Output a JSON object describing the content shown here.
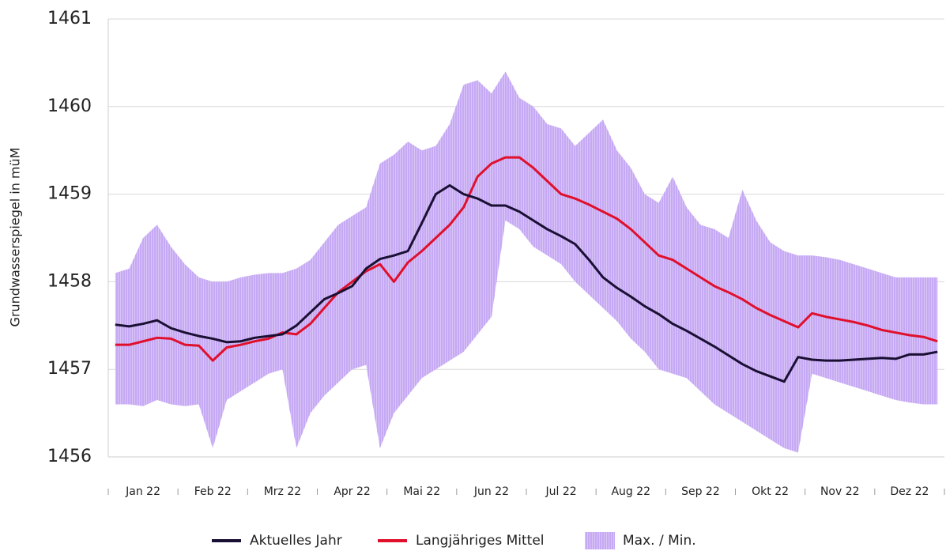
{
  "chart_data": {
    "type": "line",
    "y_label": "Grundwasserspiegel in müM",
    "categories": [
      null,
      null,
      "Jan 22",
      null,
      null,
      null,
      null,
      "Feb 22",
      null,
      null,
      null,
      null,
      "Mrz 22",
      null,
      null,
      null,
      null,
      "Apr 22",
      null,
      null,
      null,
      null,
      "Mai 22",
      null,
      null,
      null,
      null,
      "Jun 22",
      null,
      null,
      null,
      null,
      "Jul 22",
      null,
      null,
      null,
      null,
      "Aug 22",
      null,
      null,
      null,
      null,
      "Sep 22",
      null,
      null,
      null,
      null,
      "Okt 22",
      null,
      null,
      null,
      null,
      "Nov 22",
      null,
      null,
      null,
      null,
      "Dez 22",
      null,
      null
    ],
    "series": [
      {
        "name": "Aktuelles Jahr",
        "color": "#1a1033",
        "values": [
          1457.51,
          1457.49,
          1457.52,
          1457.56,
          1457.47,
          1457.42,
          1457.38,
          1457.35,
          1457.31,
          1457.32,
          1457.36,
          1457.38,
          1457.4,
          1457.5,
          1457.65,
          1457.8,
          1457.87,
          1457.95,
          1458.15,
          1458.26,
          1458.3,
          1458.35,
          1458.67,
          1459.0,
          1459.1,
          1459.0,
          1458.95,
          1458.87,
          1458.87,
          1458.8,
          1458.7,
          1458.6,
          1458.52,
          1458.43,
          1458.25,
          1458.05,
          1457.93,
          1457.83,
          1457.72,
          1457.63,
          1457.52,
          1457.44,
          1457.35,
          1457.26,
          1457.16,
          1457.06,
          1456.98,
          1456.92,
          1456.86,
          1457.14,
          1457.11,
          1457.1,
          1457.1,
          1457.11,
          1457.12,
          1457.13,
          1457.12,
          1457.17,
          1457.17,
          1457.2
        ]
      },
      {
        "name": "Langjähriges Mittel",
        "color": "#e0102c",
        "values": [
          1457.28,
          1457.28,
          1457.32,
          1457.36,
          1457.35,
          1457.28,
          1457.27,
          1457.1,
          1457.25,
          1457.28,
          1457.32,
          1457.35,
          1457.42,
          1457.4,
          1457.52,
          1457.7,
          1457.88,
          1458.0,
          1458.12,
          1458.2,
          1458.0,
          1458.22,
          1458.35,
          1458.5,
          1458.65,
          1458.85,
          1459.2,
          1459.35,
          1459.42,
          1459.42,
          1459.3,
          1459.15,
          1459.0,
          1458.95,
          1458.88,
          1458.8,
          1458.72,
          1458.6,
          1458.45,
          1458.3,
          1458.25,
          1458.15,
          1458.05,
          1457.95,
          1457.88,
          1457.8,
          1457.7,
          1457.62,
          1457.55,
          1457.48,
          1457.64,
          1457.6,
          1457.57,
          1457.54,
          1457.5,
          1457.45,
          1457.42,
          1457.39,
          1457.37,
          1457.32
        ]
      }
    ],
    "band": {
      "name": "Max. / Min.",
      "color": "#b48ef0",
      "max": [
        1458.1,
        1458.15,
        1458.5,
        1458.65,
        1458.4,
        1458.2,
        1458.05,
        1458.0,
        1458.0,
        1458.05,
        1458.08,
        1458.1,
        1458.1,
        1458.15,
        1458.25,
        1458.45,
        1458.65,
        1458.75,
        1458.85,
        1459.35,
        1459.45,
        1459.6,
        1459.5,
        1459.55,
        1459.8,
        1460.25,
        1460.3,
        1460.15,
        1460.4,
        1460.1,
        1460.0,
        1459.8,
        1459.75,
        1459.55,
        1459.7,
        1459.85,
        1459.5,
        1459.3,
        1459.0,
        1458.9,
        1459.2,
        1458.85,
        1458.65,
        1458.6,
        1458.5,
        1459.05,
        1458.7,
        1458.45,
        1458.35,
        1458.3,
        1458.3,
        1458.28,
        1458.25,
        1458.2,
        1458.15,
        1458.1,
        1458.05,
        1458.05,
        1458.05,
        1458.05
      ],
      "min": [
        1456.6,
        1456.6,
        1456.58,
        1456.65,
        1456.6,
        1456.58,
        1456.6,
        1456.1,
        1456.65,
        1456.75,
        1456.85,
        1456.95,
        1457.0,
        1456.1,
        1456.5,
        1456.7,
        1456.85,
        1457.0,
        1457.05,
        1456.1,
        1456.5,
        1456.7,
        1456.9,
        1457.0,
        1457.1,
        1457.2,
        1457.4,
        1457.6,
        1458.7,
        1458.6,
        1458.4,
        1458.3,
        1458.2,
        1458.0,
        1457.85,
        1457.7,
        1457.55,
        1457.35,
        1457.2,
        1457.0,
        1456.95,
        1456.9,
        1456.75,
        1456.6,
        1456.5,
        1456.4,
        1456.3,
        1456.2,
        1456.1,
        1456.05,
        1456.95,
        1456.9,
        1456.85,
        1456.8,
        1456.75,
        1456.7,
        1456.65,
        1456.62,
        1456.6,
        1456.6
      ]
    },
    "ylim": [
      1456,
      1461
    ],
    "yticks": [
      1456,
      1457,
      1458,
      1459,
      1460,
      1461
    ],
    "grid": true
  }
}
